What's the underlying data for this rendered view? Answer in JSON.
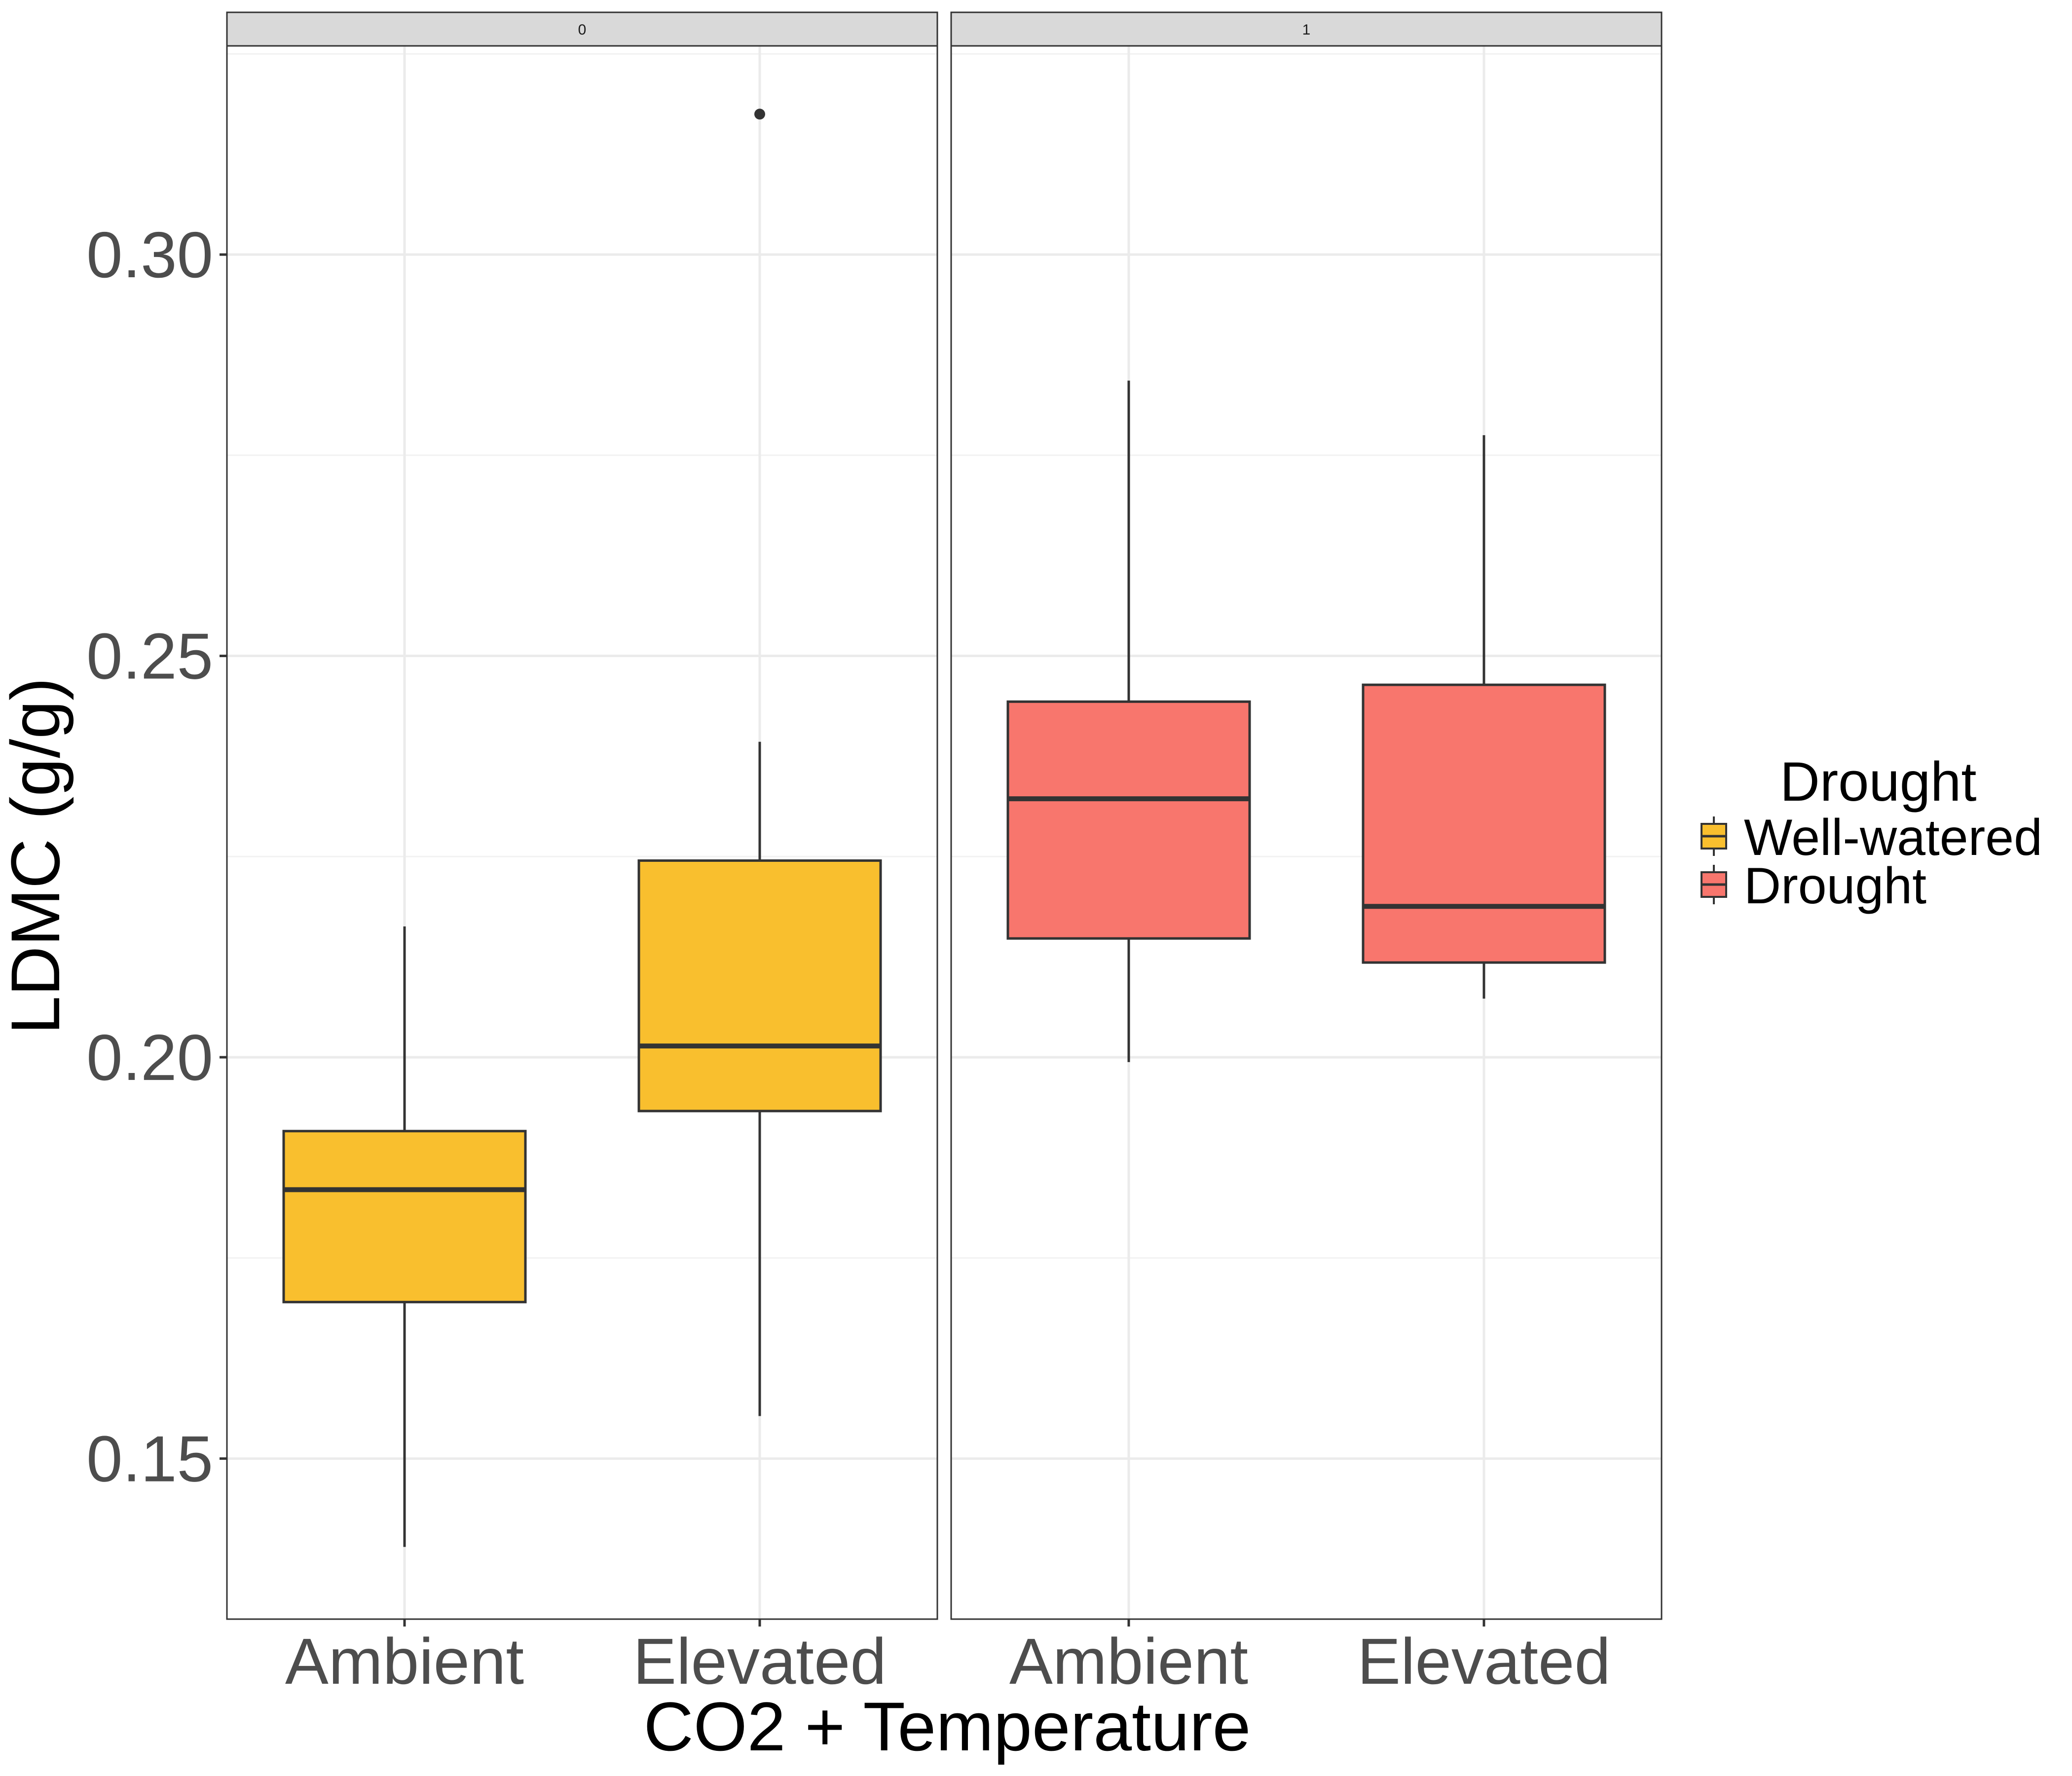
{
  "chart_data": {
    "type": "boxplot",
    "xlabel": "CO2 + Temperature",
    "ylabel": "LDMC (g/g)",
    "ylim": [
      0.13,
      0.326
    ],
    "yticks": [
      "0.15",
      "0.20",
      "0.25",
      "0.30"
    ],
    "grid": true,
    "legend": {
      "title": "Drought",
      "position": "right",
      "entries": [
        {
          "label": "Well-watered",
          "color": "#F9BF2E"
        },
        {
          "label": "Drought",
          "color": "#F8766D"
        }
      ]
    },
    "facets": [
      {
        "strip": "0",
        "categories": [
          "Ambient",
          "Elevated"
        ],
        "boxes": [
          {
            "category": "Ambient",
            "group": "Well-watered",
            "whisker_low": 0.139,
            "q1": 0.1695,
            "median": 0.1835,
            "q3": 0.1908,
            "whisker_high": 0.2163,
            "outliers": []
          },
          {
            "category": "Elevated",
            "group": "Well-watered",
            "whisker_low": 0.1553,
            "q1": 0.1933,
            "median": 0.2014,
            "q3": 0.2245,
            "whisker_high": 0.2393,
            "outliers": [
              0.3175
            ]
          }
        ]
      },
      {
        "strip": "1",
        "categories": [
          "Ambient",
          "Elevated"
        ],
        "boxes": [
          {
            "category": "Ambient",
            "group": "Drought",
            "whisker_low": 0.1994,
            "q1": 0.2148,
            "median": 0.2322,
            "q3": 0.2443,
            "whisker_high": 0.2843,
            "outliers": []
          },
          {
            "category": "Elevated",
            "group": "Drought",
            "whisker_low": 0.2073,
            "q1": 0.2118,
            "median": 0.2188,
            "q3": 0.2464,
            "whisker_high": 0.2775,
            "outliers": []
          }
        ]
      }
    ]
  }
}
